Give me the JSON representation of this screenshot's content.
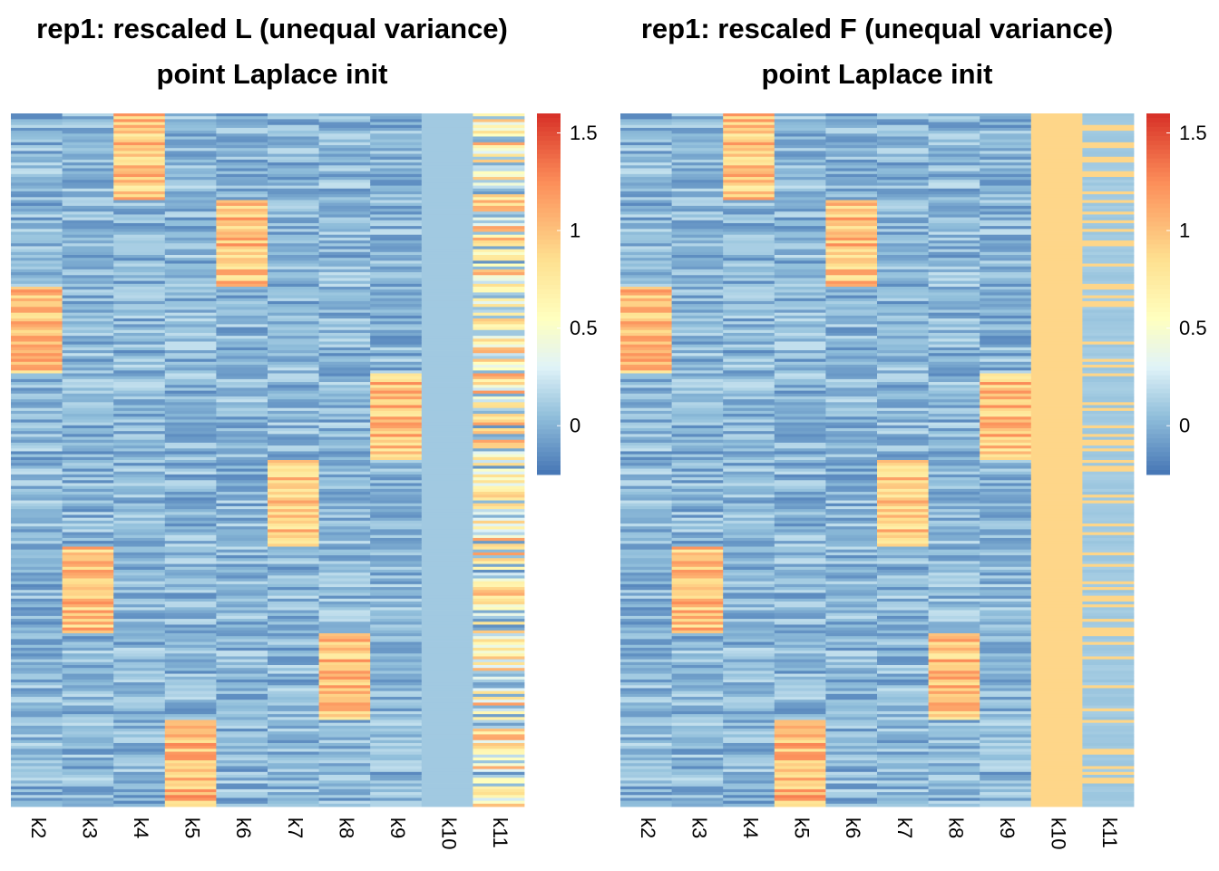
{
  "colors": {
    "scale": [
      "#4575B4",
      "#91BFDB",
      "#E0F3F8",
      "#FFFFBF",
      "#FEE090",
      "#FC8D59",
      "#D73027"
    ],
    "scale_stops": [
      -0.25,
      0.05,
      0.3,
      0.55,
      0.85,
      1.25,
      1.6
    ]
  },
  "chart_data": [
    {
      "type": "heatmap",
      "title": "rep1: rescaled L (unequal variance)",
      "subtitle": "point Laplace init",
      "columns": [
        "k2",
        "k3",
        "k4",
        "k5",
        "k6",
        "k7",
        "k8",
        "k9",
        "k10",
        "k11"
      ],
      "n_rows": 800,
      "color_range": [
        -0.25,
        1.6
      ],
      "legend": {
        "position": "right",
        "ticks": [
          0,
          0.5,
          1,
          1.5
        ],
        "tick_labels": [
          "0",
          "0.5",
          "1",
          "1.5"
        ]
      },
      "blocks": [
        {
          "column": "k2",
          "row_range": [
            200,
            300
          ],
          "mean": 1.0
        },
        {
          "column": "k3",
          "row_range": [
            500,
            600
          ],
          "mean": 1.0
        },
        {
          "column": "k4",
          "row_range": [
            0,
            100
          ],
          "mean": 0.95
        },
        {
          "column": "k5",
          "row_range": [
            700,
            800
          ],
          "mean": 1.05
        },
        {
          "column": "k6",
          "row_range": [
            100,
            200
          ],
          "mean": 1.0
        },
        {
          "column": "k7",
          "row_range": [
            400,
            500
          ],
          "mean": 0.95
        },
        {
          "column": "k8",
          "row_range": [
            600,
            700
          ],
          "mean": 1.0
        },
        {
          "column": "k9",
          "row_range": [
            300,
            400
          ],
          "mean": 1.0
        }
      ],
      "background_mean": 0.0,
      "k10_constant_value": 0.1,
      "k11_pattern": "mixed 0 to 1.2 across all rows"
    },
    {
      "type": "heatmap",
      "title": "rep1: rescaled F (unequal variance)",
      "subtitle": "point Laplace init",
      "columns": [
        "k2",
        "k3",
        "k4",
        "k5",
        "k6",
        "k7",
        "k8",
        "k9",
        "k10",
        "k11"
      ],
      "n_rows": 800,
      "color_range": [
        -0.25,
        1.6
      ],
      "legend": {
        "position": "right",
        "ticks": [
          0,
          0.5,
          1,
          1.5
        ],
        "tick_labels": [
          "0",
          "0.5",
          "1",
          "1.5"
        ]
      },
      "blocks": [
        {
          "column": "k2",
          "row_range": [
            200,
            300
          ],
          "mean": 1.0
        },
        {
          "column": "k3",
          "row_range": [
            500,
            600
          ],
          "mean": 1.0
        },
        {
          "column": "k4",
          "row_range": [
            0,
            100
          ],
          "mean": 0.95
        },
        {
          "column": "k5",
          "row_range": [
            700,
            800
          ],
          "mean": 1.05
        },
        {
          "column": "k6",
          "row_range": [
            100,
            200
          ],
          "mean": 1.0
        },
        {
          "column": "k7",
          "row_range": [
            400,
            500
          ],
          "mean": 0.95
        },
        {
          "column": "k8",
          "row_range": [
            600,
            700
          ],
          "mean": 1.0
        },
        {
          "column": "k9",
          "row_range": [
            300,
            400
          ],
          "mean": 1.0
        }
      ],
      "background_mean": 0.0,
      "k10_constant_value": 0.9,
      "k11_pattern": "mostly 0.1 with scattered 0.9 rows"
    }
  ]
}
